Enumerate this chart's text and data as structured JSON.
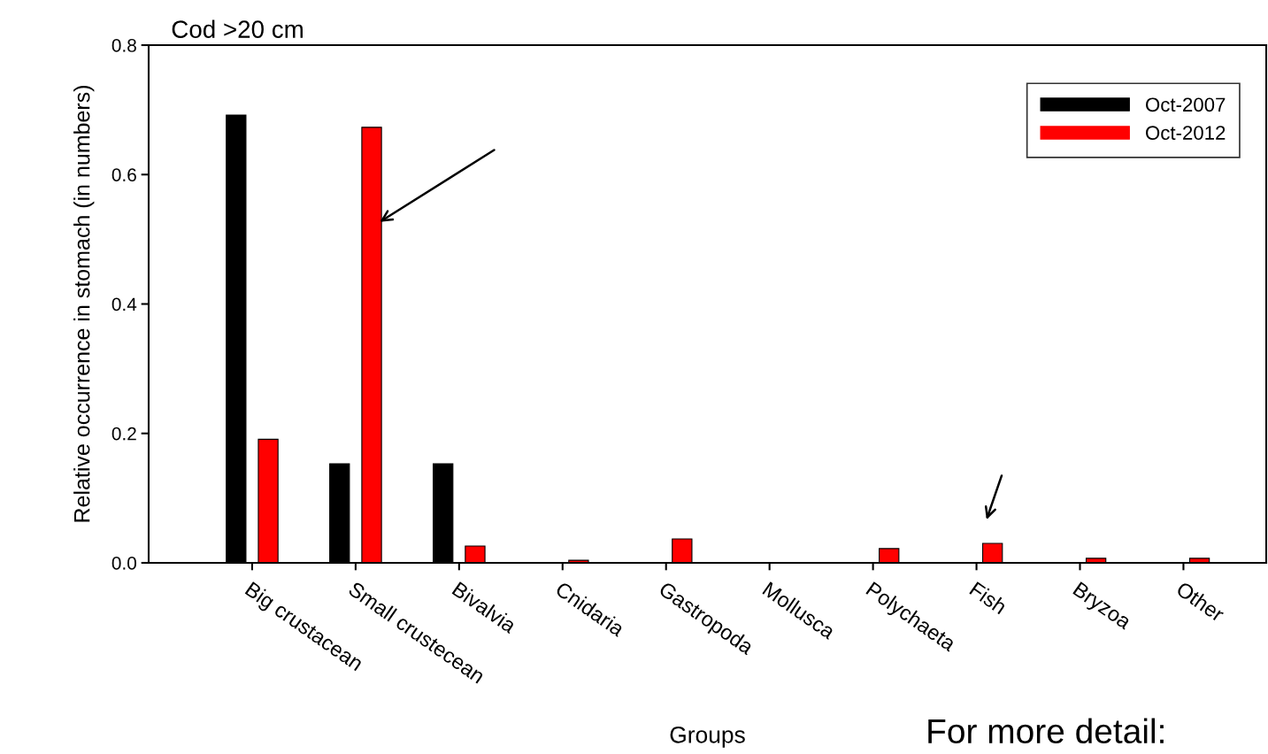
{
  "chart_data": {
    "type": "bar",
    "title": "Cod >20 cm",
    "xlabel": "Groups",
    "ylabel": "Relative occurrence in stomach (in numbers)",
    "categories": [
      "Big crustacean",
      "Small crustecean",
      "Bivalvia",
      "Cnidaria",
      "Gastropoda",
      "Mollusca",
      "Polychaeta",
      "Fish",
      "Bryzoa",
      "Other"
    ],
    "series": [
      {
        "name": "Oct-2007",
        "color": "#000000",
        "values": [
          0.692,
          0.153,
          0.153,
          null,
          null,
          null,
          null,
          null,
          null,
          null
        ]
      },
      {
        "name": "Oct-2012",
        "color": "#ff0000",
        "values": [
          0.191,
          0.673,
          0.026,
          0.004,
          0.037,
          null,
          0.022,
          0.03,
          0.007,
          0.007
        ]
      }
    ],
    "ylim": [
      0,
      0.8
    ],
    "yticks": [
      {
        "value": 0,
        "label": "0.0"
      },
      {
        "value": 0.2,
        "label": "0.2"
      },
      {
        "value": 0.4,
        "label": "0.4"
      },
      {
        "value": 0.6,
        "label": "0.6"
      },
      {
        "value": 0.8,
        "label": "0.8"
      }
    ],
    "legend": "top right",
    "grid": false,
    "annotations": [
      "For more detail:"
    ]
  }
}
